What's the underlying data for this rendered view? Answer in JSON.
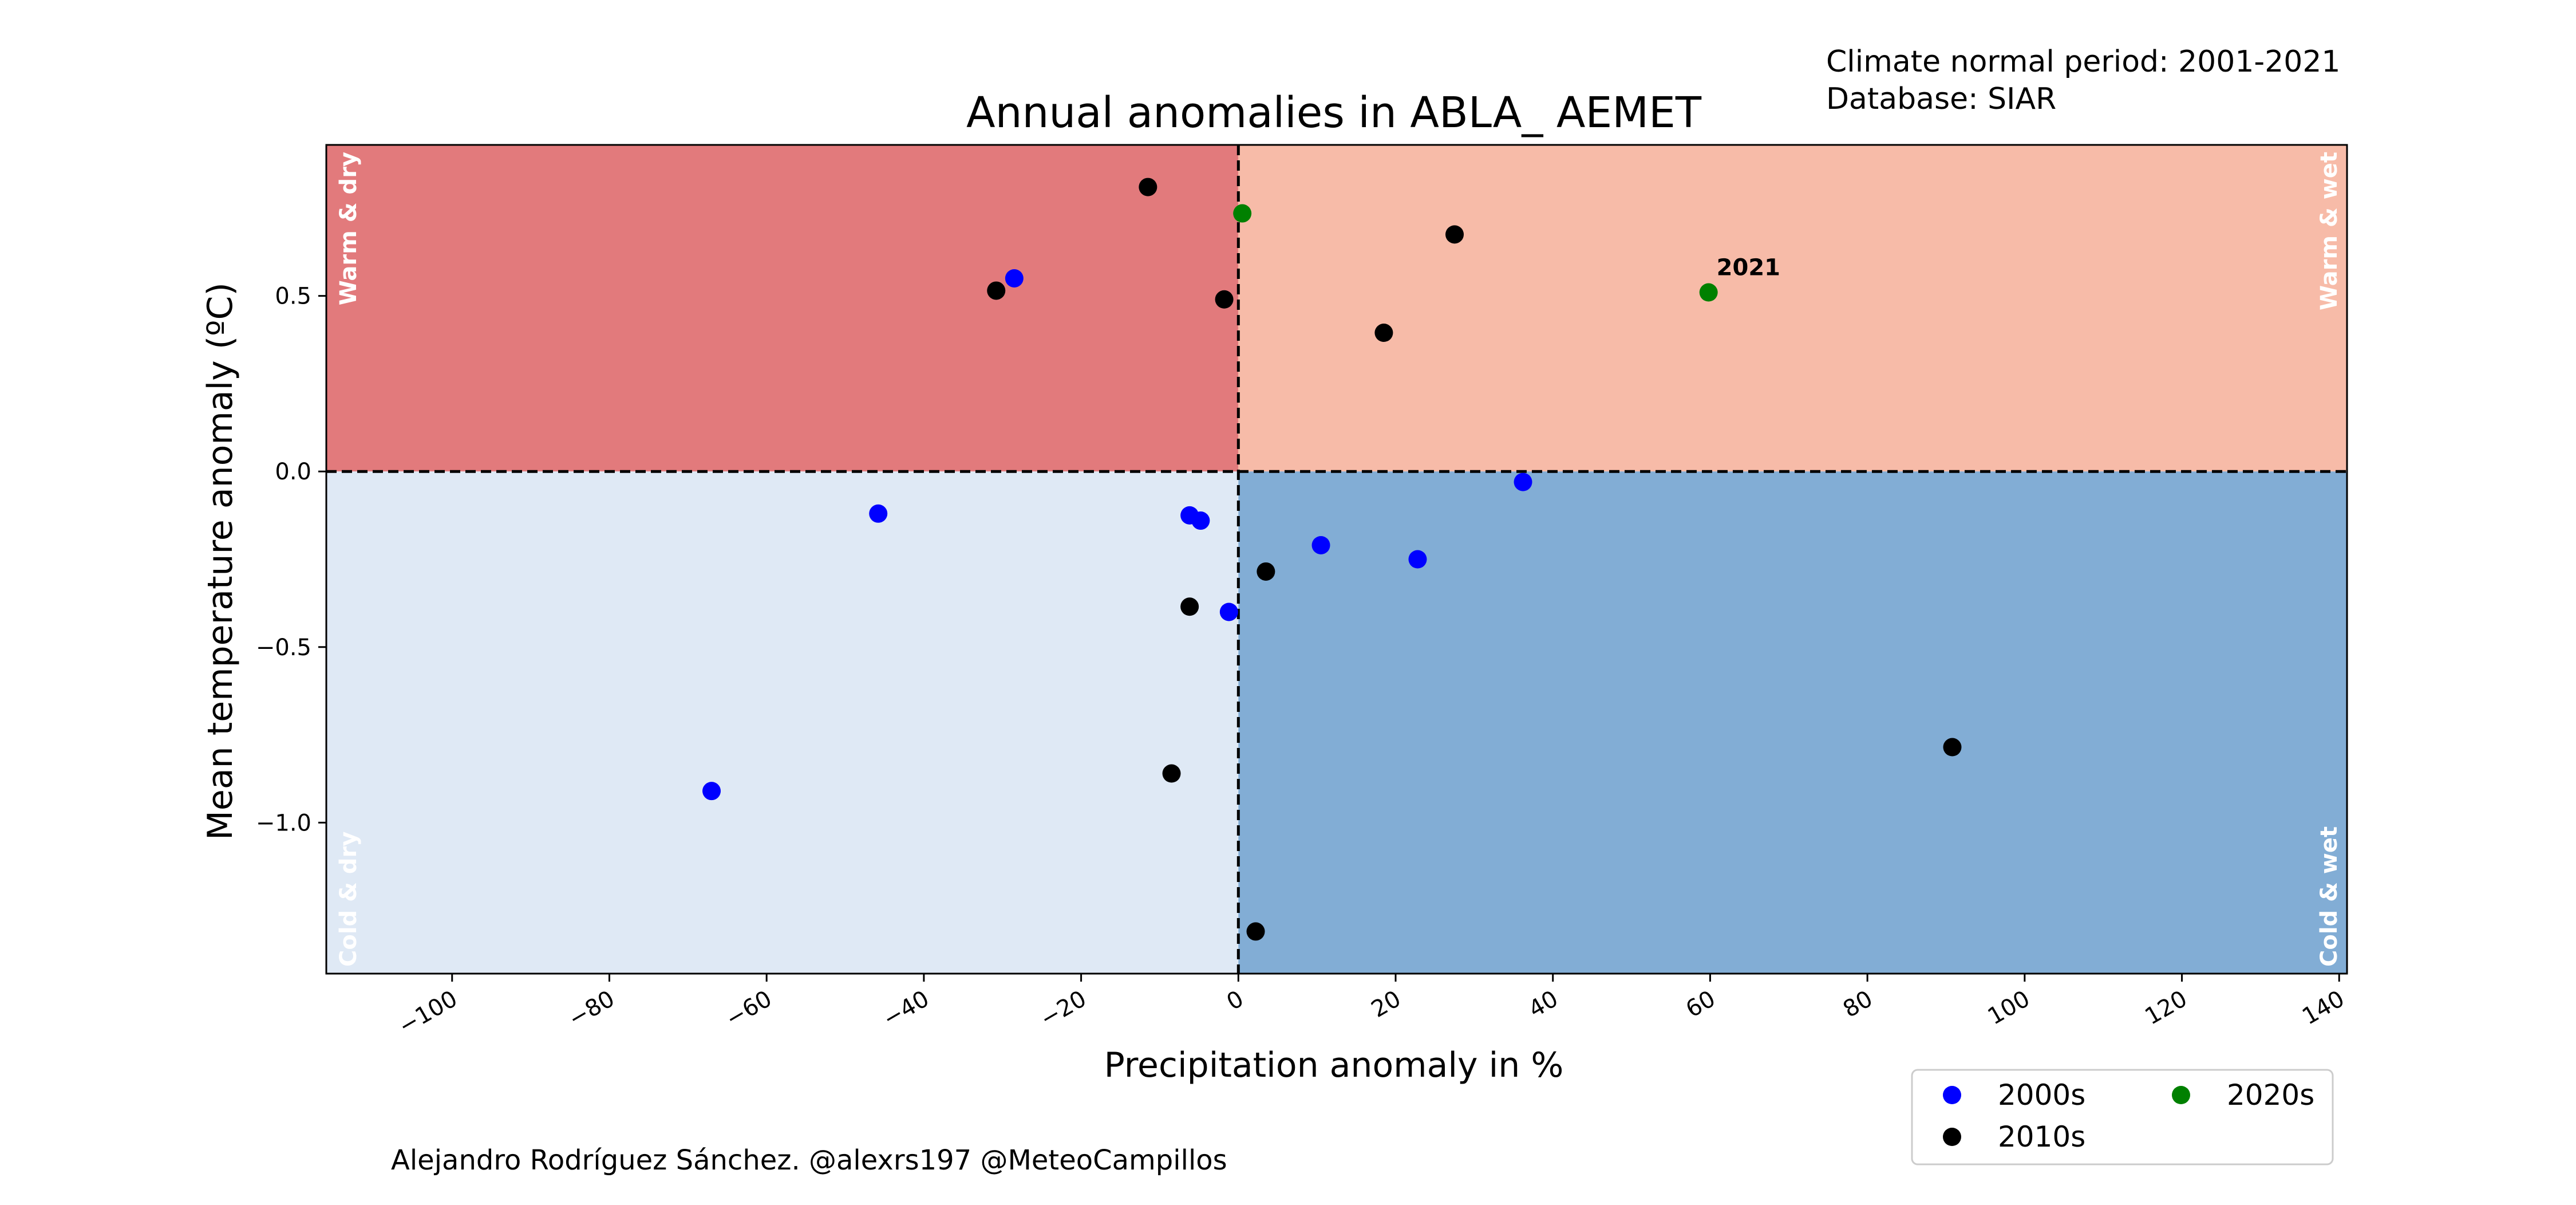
{
  "header_notes": [
    "Climate normal period: 2001-2021",
    "Database: SIAR"
  ],
  "credit": "Alejandro Rodríguez Sánchez. @alexrs197 @MeteoCampillos",
  "chart_data": {
    "type": "scatter",
    "title": "Annual anomalies in ABLA_ AEMET",
    "xlabel": "Precipitation anomaly in %",
    "ylabel": "Mean temperature anomaly (ºC)",
    "xlim": [
      -116,
      141
    ],
    "ylim": [
      -1.43,
      0.93
    ],
    "xticks": [
      -100,
      -80,
      -60,
      -40,
      -20,
      0,
      20,
      40,
      60,
      80,
      100,
      120,
      140
    ],
    "xtick_labels": [
      "−100",
      "−80",
      "−60",
      "−40",
      "−20",
      "0",
      "20",
      "40",
      "60",
      "80",
      "100",
      "120",
      "140"
    ],
    "yticks": [
      -1.0,
      -0.5,
      0.0,
      0.5
    ],
    "ytick_labels": [
      "−1.0",
      "−0.5",
      "0.0",
      "0.5"
    ],
    "grid": false,
    "quadrants": [
      {
        "label": "Warm & dry",
        "color": "#e27a7c",
        "x": "negative",
        "y": "positive"
      },
      {
        "label": "Warm & wet",
        "color": "#f7bba8",
        "x": "positive",
        "y": "positive"
      },
      {
        "label": "Cold & dry",
        "color": "#dfe9f5",
        "x": "negative",
        "y": "negative"
      },
      {
        "label": "Cold & wet",
        "color": "#82add5",
        "x": "positive",
        "y": "negative"
      }
    ],
    "reference_lines": {
      "x": 0,
      "y": 0,
      "style": "dashed",
      "color": "#000000"
    },
    "legend_position": "lower-right, below axes",
    "series": [
      {
        "name": "2000s",
        "color": "#0000ff",
        "points": [
          {
            "x": -28.5,
            "y": 0.55
          },
          {
            "x": -45.8,
            "y": -0.12
          },
          {
            "x": -67.0,
            "y": -0.91
          },
          {
            "x": -6.2,
            "y": -0.125
          },
          {
            "x": -4.8,
            "y": -0.14
          },
          {
            "x": -1.2,
            "y": -0.4
          },
          {
            "x": 10.5,
            "y": -0.21
          },
          {
            "x": 22.8,
            "y": -0.25
          },
          {
            "x": 36.2,
            "y": -0.03
          }
        ]
      },
      {
        "name": "2010s",
        "color": "#000000",
        "points": [
          {
            "x": -11.5,
            "y": 0.81
          },
          {
            "x": -30.8,
            "y": 0.515
          },
          {
            "x": -1.8,
            "y": 0.49
          },
          {
            "x": 27.5,
            "y": 0.675
          },
          {
            "x": 18.5,
            "y": 0.395
          },
          {
            "x": 3.5,
            "y": -0.285
          },
          {
            "x": -6.2,
            "y": -0.385
          },
          {
            "x": -8.5,
            "y": -0.86
          },
          {
            "x": 2.2,
            "y": -1.31
          },
          {
            "x": 90.8,
            "y": -0.785
          }
        ]
      },
      {
        "name": "2020s",
        "color": "#008000",
        "points": [
          {
            "x": 0.5,
            "y": 0.735
          },
          {
            "x": 59.8,
            "y": 0.51,
            "label": "2021"
          }
        ]
      }
    ]
  }
}
